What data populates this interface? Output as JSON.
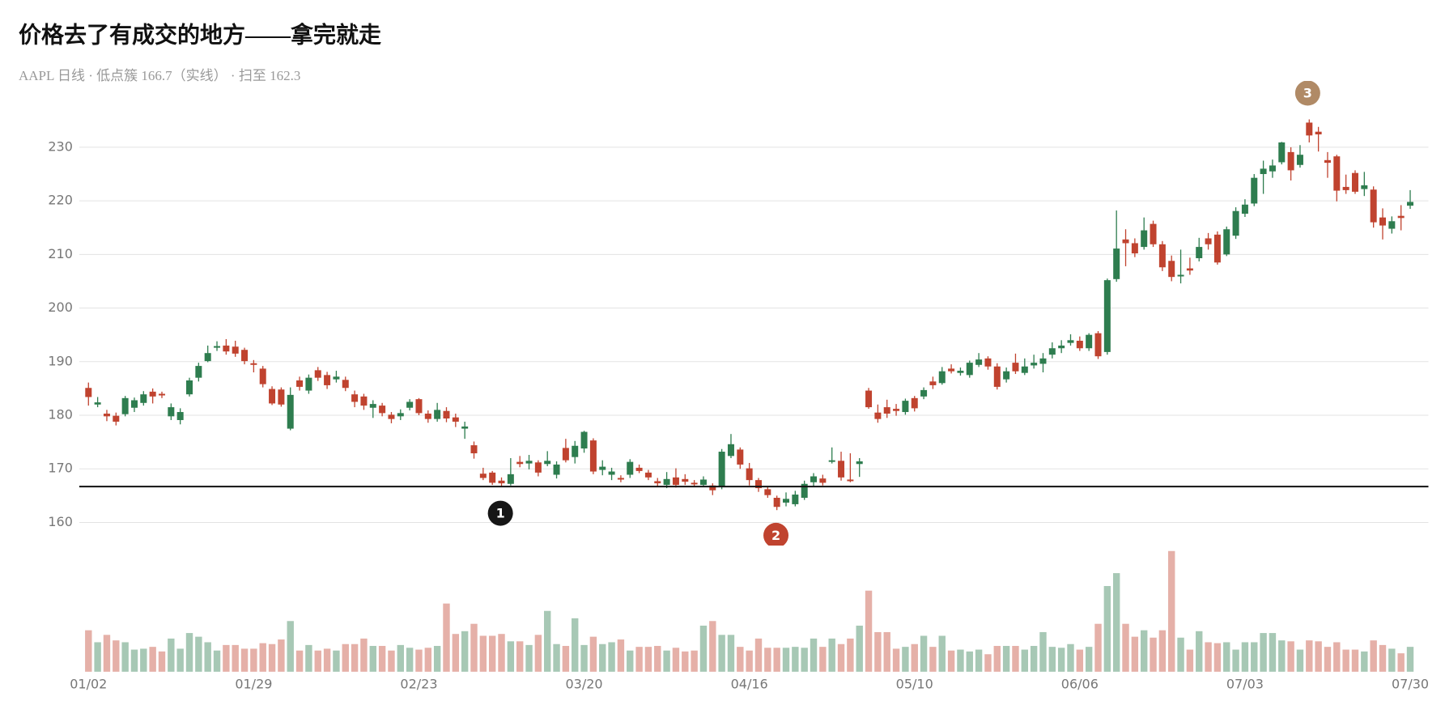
{
  "chart_data": {
    "type": "candlestick",
    "title": "价格去了有成交的地方——拿完就走",
    "subtitle": "AAPL 日线 · 低点簇 166.7（实线） · 扫至 162.3",
    "categories": [
      "01/02",
      null,
      null,
      null,
      null,
      null,
      null,
      null,
      null,
      null,
      null,
      null,
      null,
      null,
      null,
      null,
      null,
      null,
      "01/29",
      null,
      null,
      null,
      null,
      null,
      null,
      null,
      null,
      null,
      null,
      null,
      null,
      null,
      null,
      null,
      null,
      null,
      "02/23",
      null,
      null,
      null,
      null,
      null,
      null,
      null,
      null,
      null,
      null,
      null,
      null,
      null,
      null,
      null,
      null,
      null,
      "03/20",
      null,
      null,
      null,
      null,
      null,
      null,
      null,
      null,
      null,
      null,
      null,
      null,
      null,
      null,
      null,
      null,
      null,
      "04/16",
      null,
      null,
      null,
      null,
      null,
      null,
      null,
      null,
      null,
      null,
      null,
      null,
      null,
      null,
      null,
      null,
      null,
      "05/10",
      null,
      null,
      null,
      null,
      null,
      null,
      null,
      null,
      null,
      null,
      null,
      null,
      null,
      null,
      null,
      null,
      null,
      "06/06",
      null,
      null,
      null,
      null,
      null,
      null,
      null,
      null,
      null,
      null,
      null,
      null,
      null,
      null,
      null,
      null,
      null,
      "07/03",
      null,
      null,
      null,
      null,
      null,
      null,
      null,
      null,
      null,
      null,
      null,
      null,
      null,
      null,
      null,
      null,
      null,
      "07/30"
    ],
    "open": [
      185.1,
      182.0,
      180.3,
      179.9,
      180.2,
      181.4,
      182.3,
      184.4,
      184.0,
      179.8,
      179.1,
      183.9,
      187.0,
      190.1,
      192.6,
      193.0,
      192.8,
      192.2,
      189.7,
      188.7,
      184.9,
      184.8,
      177.5,
      186.5,
      184.6,
      188.4,
      187.5,
      186.7,
      186.6,
      183.9,
      183.5,
      181.4,
      181.8,
      180.1,
      179.8,
      181.4,
      183.0,
      180.3,
      179.3,
      180.8,
      179.6,
      177.5,
      174.4,
      169.1,
      169.3,
      167.8,
      167.2,
      171.3,
      171.0,
      171.2,
      170.9,
      168.9,
      173.9,
      172.2,
      173.8,
      175.3,
      169.8,
      168.9,
      168.3,
      168.9,
      170.2,
      169.3,
      167.7,
      167.0,
      168.4,
      168.1,
      167.4,
      167.0,
      166.9,
      166.7,
      172.4,
      173.6,
      170.1,
      167.9,
      166.2,
      164.6,
      163.7,
      163.4,
      164.6,
      167.5,
      168.2,
      171.3,
      171.5,
      168.0,
      170.9,
      184.6,
      180.5,
      181.5,
      181.2,
      180.6,
      183.2,
      183.5,
      186.3,
      186.0,
      188.7,
      187.9,
      187.5,
      189.4,
      190.6,
      189.1,
      186.7,
      189.8,
      187.9,
      189.3,
      189.6,
      191.3,
      192.5,
      193.5,
      193.9,
      192.5,
      195.3,
      191.8,
      205.4,
      212.8,
      212.1,
      211.4,
      215.7,
      211.9,
      208.8,
      205.9,
      207.4,
      209.3,
      213.0,
      213.7,
      210.0,
      213.5,
      217.6,
      219.5,
      225.0,
      225.5,
      227.2,
      229.1,
      226.7,
      234.6,
      232.9,
      227.6,
      228.3,
      222.6,
      225.2,
      222.2,
      222.1,
      216.9,
      214.8,
      217.2,
      219.1
    ],
    "high": [
      186.1,
      183.4,
      181.0,
      180.5,
      183.6,
      183.3,
      184.5,
      185.0,
      184.4,
      182.2,
      181.3,
      187.0,
      189.8,
      193.0,
      193.8,
      194.2,
      193.9,
      192.6,
      190.3,
      189.2,
      185.4,
      185.2,
      185.2,
      187.2,
      187.6,
      189.0,
      188.1,
      188.3,
      187.2,
      184.6,
      184.0,
      182.8,
      182.3,
      180.6,
      181.1,
      183.0,
      183.2,
      180.9,
      182.3,
      181.5,
      180.3,
      178.8,
      175.1,
      170.2,
      169.6,
      168.4,
      172.0,
      172.4,
      172.6,
      171.6,
      173.3,
      171.4,
      175.6,
      175.2,
      177.1,
      175.7,
      171.6,
      170.2,
      168.8,
      171.8,
      170.8,
      169.8,
      168.3,
      169.4,
      170.1,
      169.0,
      167.9,
      168.6,
      167.3,
      173.7,
      176.5,
      174.0,
      171.1,
      168.3,
      166.8,
      165.0,
      165.6,
      165.9,
      167.8,
      169.2,
      168.9,
      174.0,
      173.2,
      172.9,
      172.0,
      185.1,
      182.0,
      182.9,
      182.1,
      183.1,
      183.6,
      185.2,
      187.2,
      189.0,
      189.5,
      188.9,
      190.2,
      191.6,
      191.0,
      189.7,
      188.9,
      191.5,
      190.6,
      191.3,
      191.6,
      193.6,
      194.0,
      195.1,
      194.7,
      195.3,
      195.7,
      205.5,
      218.2,
      214.7,
      213.0,
      216.9,
      216.3,
      212.5,
      209.8,
      210.9,
      209.4,
      213.1,
      214.0,
      214.3,
      215.2,
      218.8,
      220.3,
      225.0,
      227.5,
      227.7,
      231.0,
      230.0,
      230.4,
      235.2,
      233.8,
      229.1,
      228.6,
      224.9,
      225.7,
      225.4,
      222.7,
      218.6,
      217.1,
      219.2,
      222.0
    ],
    "low": [
      181.8,
      181.5,
      178.9,
      178.1,
      179.8,
      180.6,
      181.8,
      182.2,
      183.2,
      179.1,
      178.3,
      183.5,
      186.3,
      189.9,
      192.0,
      191.3,
      190.9,
      189.5,
      188.0,
      185.2,
      181.9,
      181.6,
      177.2,
      184.6,
      184.0,
      186.4,
      184.9,
      186.1,
      184.5,
      181.5,
      181.0,
      179.5,
      179.8,
      178.5,
      179.1,
      180.9,
      180.0,
      178.6,
      178.8,
      178.7,
      177.8,
      175.6,
      171.9,
      167.9,
      167.0,
      166.8,
      166.9,
      170.3,
      169.9,
      168.6,
      170.5,
      168.2,
      171.2,
      171.0,
      173.0,
      169.0,
      168.8,
      167.9,
      167.5,
      168.3,
      169.2,
      167.9,
      166.6,
      166.4,
      166.5,
      167.0,
      166.6,
      166.6,
      165.1,
      166.2,
      172.0,
      170.0,
      166.9,
      165.7,
      164.6,
      162.3,
      163.0,
      163.0,
      164.2,
      166.8,
      166.9,
      171.0,
      167.8,
      167.5,
      168.5,
      181.2,
      178.6,
      179.5,
      179.9,
      180.1,
      180.7,
      183.0,
      184.9,
      185.7,
      187.8,
      187.4,
      187.0,
      189.0,
      188.5,
      184.8,
      186.1,
      187.7,
      187.5,
      188.7,
      188.0,
      190.6,
      191.6,
      193.0,
      192.0,
      192.0,
      190.5,
      191.3,
      204.9,
      207.8,
      209.5,
      210.9,
      211.4,
      206.9,
      205.0,
      204.6,
      206.2,
      208.7,
      210.9,
      208.1,
      209.7,
      212.9,
      217.0,
      219.0,
      221.3,
      224.3,
      226.8,
      223.8,
      226.2,
      230.9,
      229.2,
      224.3,
      219.9,
      221.3,
      221.3,
      220.9,
      215.0,
      212.8,
      213.9,
      214.5,
      218.5
    ],
    "close": [
      183.4,
      182.4,
      179.8,
      178.8,
      183.2,
      182.8,
      183.9,
      183.5,
      183.7,
      181.5,
      180.6,
      186.5,
      189.2,
      191.6,
      192.9,
      191.9,
      191.5,
      190.1,
      189.4,
      185.8,
      182.2,
      182.0,
      183.8,
      185.3,
      187.0,
      187.0,
      185.6,
      187.2,
      185.1,
      182.5,
      181.8,
      182.1,
      180.4,
      179.3,
      180.4,
      182.5,
      180.4,
      179.3,
      181.0,
      179.4,
      178.8,
      177.9,
      172.9,
      168.3,
      167.4,
      167.3,
      169.0,
      170.9,
      171.5,
      169.3,
      171.5,
      170.8,
      171.6,
      174.3,
      176.9,
      169.5,
      170.4,
      169.5,
      168.0,
      171.3,
      169.6,
      168.4,
      167.3,
      168.1,
      167.0,
      167.6,
      167.1,
      168.0,
      166.0,
      173.2,
      174.6,
      170.8,
      167.9,
      166.4,
      165.1,
      162.9,
      164.4,
      165.2,
      167.2,
      168.6,
      167.4,
      171.6,
      168.4,
      167.7,
      171.4,
      181.5,
      179.3,
      180.3,
      180.8,
      182.7,
      181.3,
      184.7,
      185.6,
      188.2,
      188.2,
      188.3,
      189.8,
      190.4,
      189.1,
      185.3,
      188.2,
      188.2,
      189.1,
      189.8,
      190.6,
      192.5,
      193.0,
      194.0,
      192.5,
      195.0,
      191.0,
      205.2,
      211.1,
      212.1,
      210.2,
      214.5,
      211.9,
      207.6,
      205.8,
      206.2,
      207.0,
      211.4,
      211.9,
      208.5,
      214.7,
      218.1,
      219.3,
      224.3,
      226.0,
      226.6,
      230.9,
      225.7,
      228.6,
      232.2,
      232.4,
      227.1,
      221.9,
      222.0,
      221.7,
      222.9,
      216.0,
      215.4,
      216.2,
      216.8,
      219.8
    ],
    "volume": [
      45,
      32,
      40,
      34,
      32,
      24,
      25,
      27,
      22,
      36,
      25,
      42,
      38,
      32,
      23,
      29,
      29,
      25,
      25,
      31,
      30,
      35,
      55,
      23,
      29,
      23,
      25,
      23,
      30,
      30,
      36,
      28,
      28,
      23,
      29,
      26,
      24,
      26,
      28,
      74,
      41,
      44,
      52,
      39,
      39,
      41,
      33,
      33,
      29,
      40,
      66,
      30,
      28,
      58,
      29,
      38,
      30,
      32,
      35,
      23,
      27,
      27,
      28,
      23,
      26,
      22,
      23,
      50,
      55,
      40,
      40,
      27,
      23,
      36,
      26,
      26,
      26,
      27,
      26,
      36,
      27,
      36,
      30,
      36,
      50,
      88,
      43,
      43,
      25,
      27,
      30,
      39,
      27,
      39,
      23,
      24,
      22,
      24,
      19,
      28,
      28,
      28,
      24,
      28,
      43,
      27,
      26,
      30,
      24,
      27,
      52,
      93,
      107,
      52,
      38,
      45,
      37,
      45,
      131,
      37,
      24,
      44,
      32,
      31,
      32,
      24,
      32,
      32,
      42,
      42,
      34,
      33,
      24,
      34,
      33,
      27,
      32,
      24,
      24,
      22,
      34,
      29,
      25,
      20,
      27
    ],
    "ylim": [
      155.7,
      242
    ],
    "yticks": [
      160,
      170,
      180,
      190,
      200,
      210,
      220,
      230
    ],
    "level": 166.7,
    "grid": true,
    "up_color": "#2e7d4f",
    "down_color": "#c0432f",
    "level_color": "#111111",
    "markers": [
      {
        "label": "1",
        "color": "#161616"
      },
      {
        "label": "2",
        "color": "#c0432f"
      },
      {
        "label": "3",
        "color": "#b08a66"
      }
    ]
  }
}
